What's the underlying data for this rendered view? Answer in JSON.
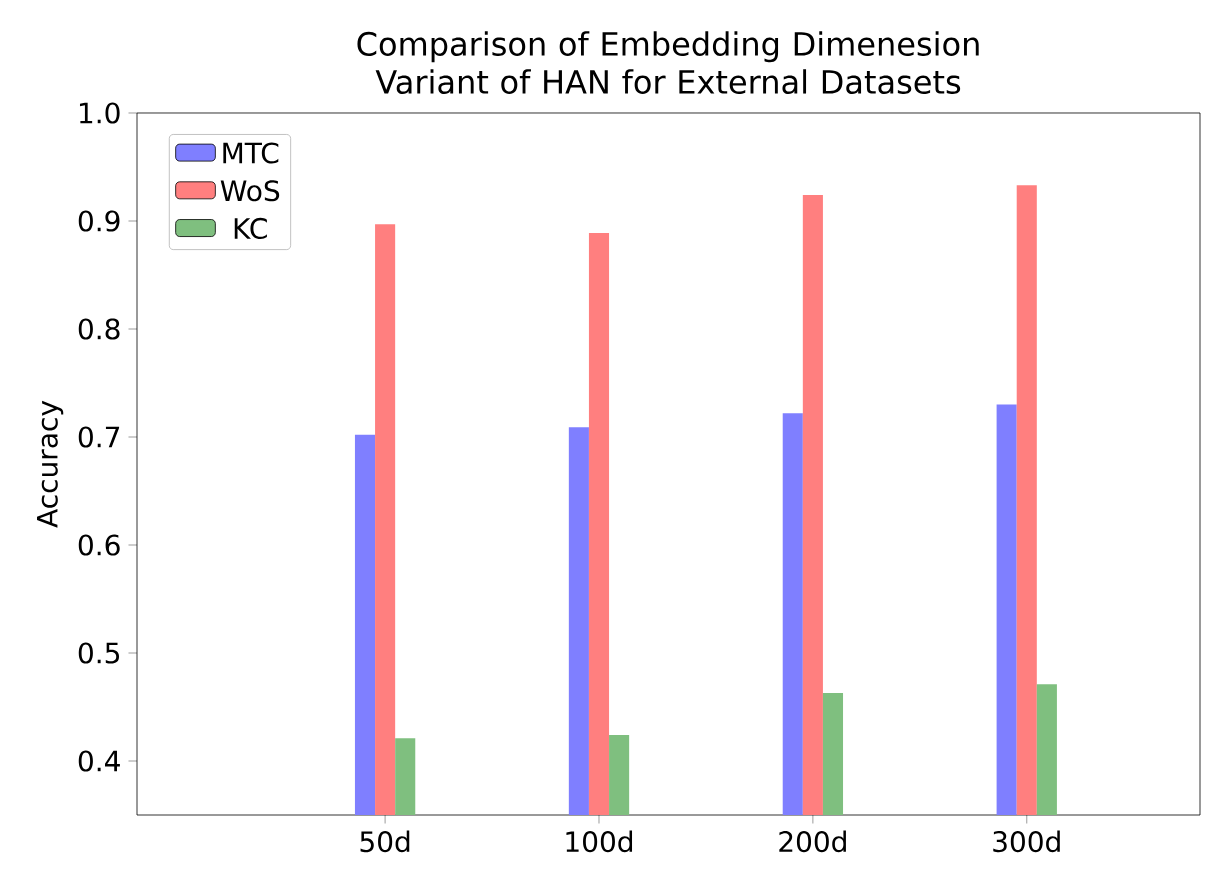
{
  "chart_data": {
    "type": "bar",
    "title": "Comparison of Embedding Dimenesion Variant of HAN for External Datasets",
    "ylabel": "Accuracy",
    "categories": [
      "50d",
      "100d",
      "200d",
      "300d"
    ],
    "series": [
      {
        "name": "MTC",
        "color": "#7f7fff",
        "values": [
          0.702,
          0.709,
          0.722,
          0.73
        ]
      },
      {
        "name": "WoS",
        "color": "#ff7f7f",
        "values": [
          0.897,
          0.889,
          0.924,
          0.933
        ]
      },
      {
        "name": "KC",
        "color": "#7fbf7f",
        "values": [
          0.421,
          0.424,
          0.463,
          0.471
        ]
      }
    ],
    "ylim": [
      0.35,
      1.0
    ],
    "yticks": [
      0.4,
      0.5,
      0.6,
      0.7,
      0.8,
      0.9,
      {
        "value": 1.0,
        "label": "1.0"
      }
    ],
    "legend": "top left"
  }
}
